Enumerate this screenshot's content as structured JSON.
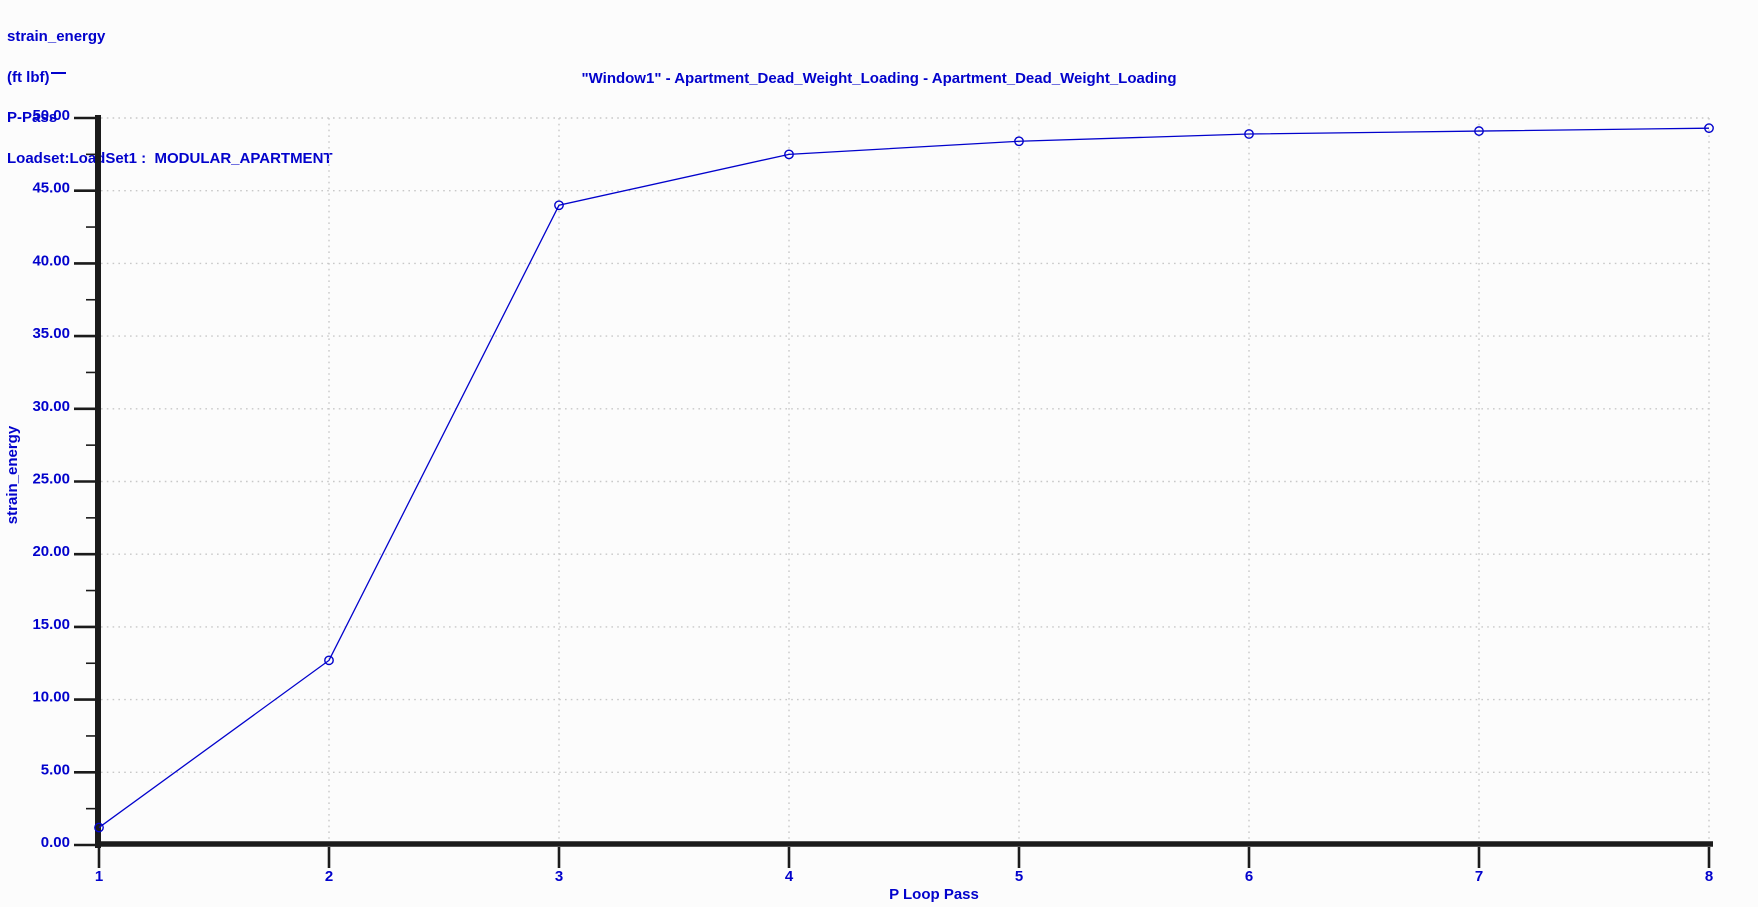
{
  "title": "\"Window1\" - Apartment_Dead_Weight_Loading - Apartment_Dead_Weight_Loading",
  "legend": {
    "series_name": "strain_energy",
    "units": "(ft lbf)",
    "x_quantity": "P-Pass",
    "loadset": "Loadset:LoadSet1 :  MODULAR_APARTMENT"
  },
  "chart_data": {
    "type": "line",
    "title": "\"Window1\" - Apartment_Dead_Weight_Loading - Apartment_Dead_Weight_Loading",
    "x": [
      1,
      2,
      3,
      4,
      5,
      6,
      7,
      8
    ],
    "series": [
      {
        "name": "strain_energy (ft lbf)",
        "values": [
          1.2,
          12.7,
          44.0,
          47.5,
          48.4,
          48.9,
          49.1,
          49.3
        ]
      }
    ],
    "xlabel": "P Loop Pass",
    "ylabel": "strain_energy",
    "xlim": [
      1,
      8
    ],
    "ylim": [
      0,
      50
    ],
    "x_tick_step": 1,
    "y_tick_step": 5,
    "y_minor_tick_step": 2.5,
    "y_tick_decimals": 2,
    "x_tick_labels": [
      "1",
      "2",
      "3",
      "4",
      "5",
      "6",
      "7",
      "8"
    ],
    "y_tick_labels": [
      "0.00",
      "5.00",
      "10.00",
      "15.00",
      "20.00",
      "25.00",
      "30.00",
      "35.00",
      "40.00",
      "45.00",
      "50.00"
    ],
    "grid": "dotted",
    "legend_position": "top-left",
    "marker": "open-circle",
    "colors": {
      "line": "#0202CC",
      "text": "#0202CC",
      "axis": "#1B1B1B",
      "grid": "#C8C8C8",
      "background": "#FCFCFC"
    }
  }
}
